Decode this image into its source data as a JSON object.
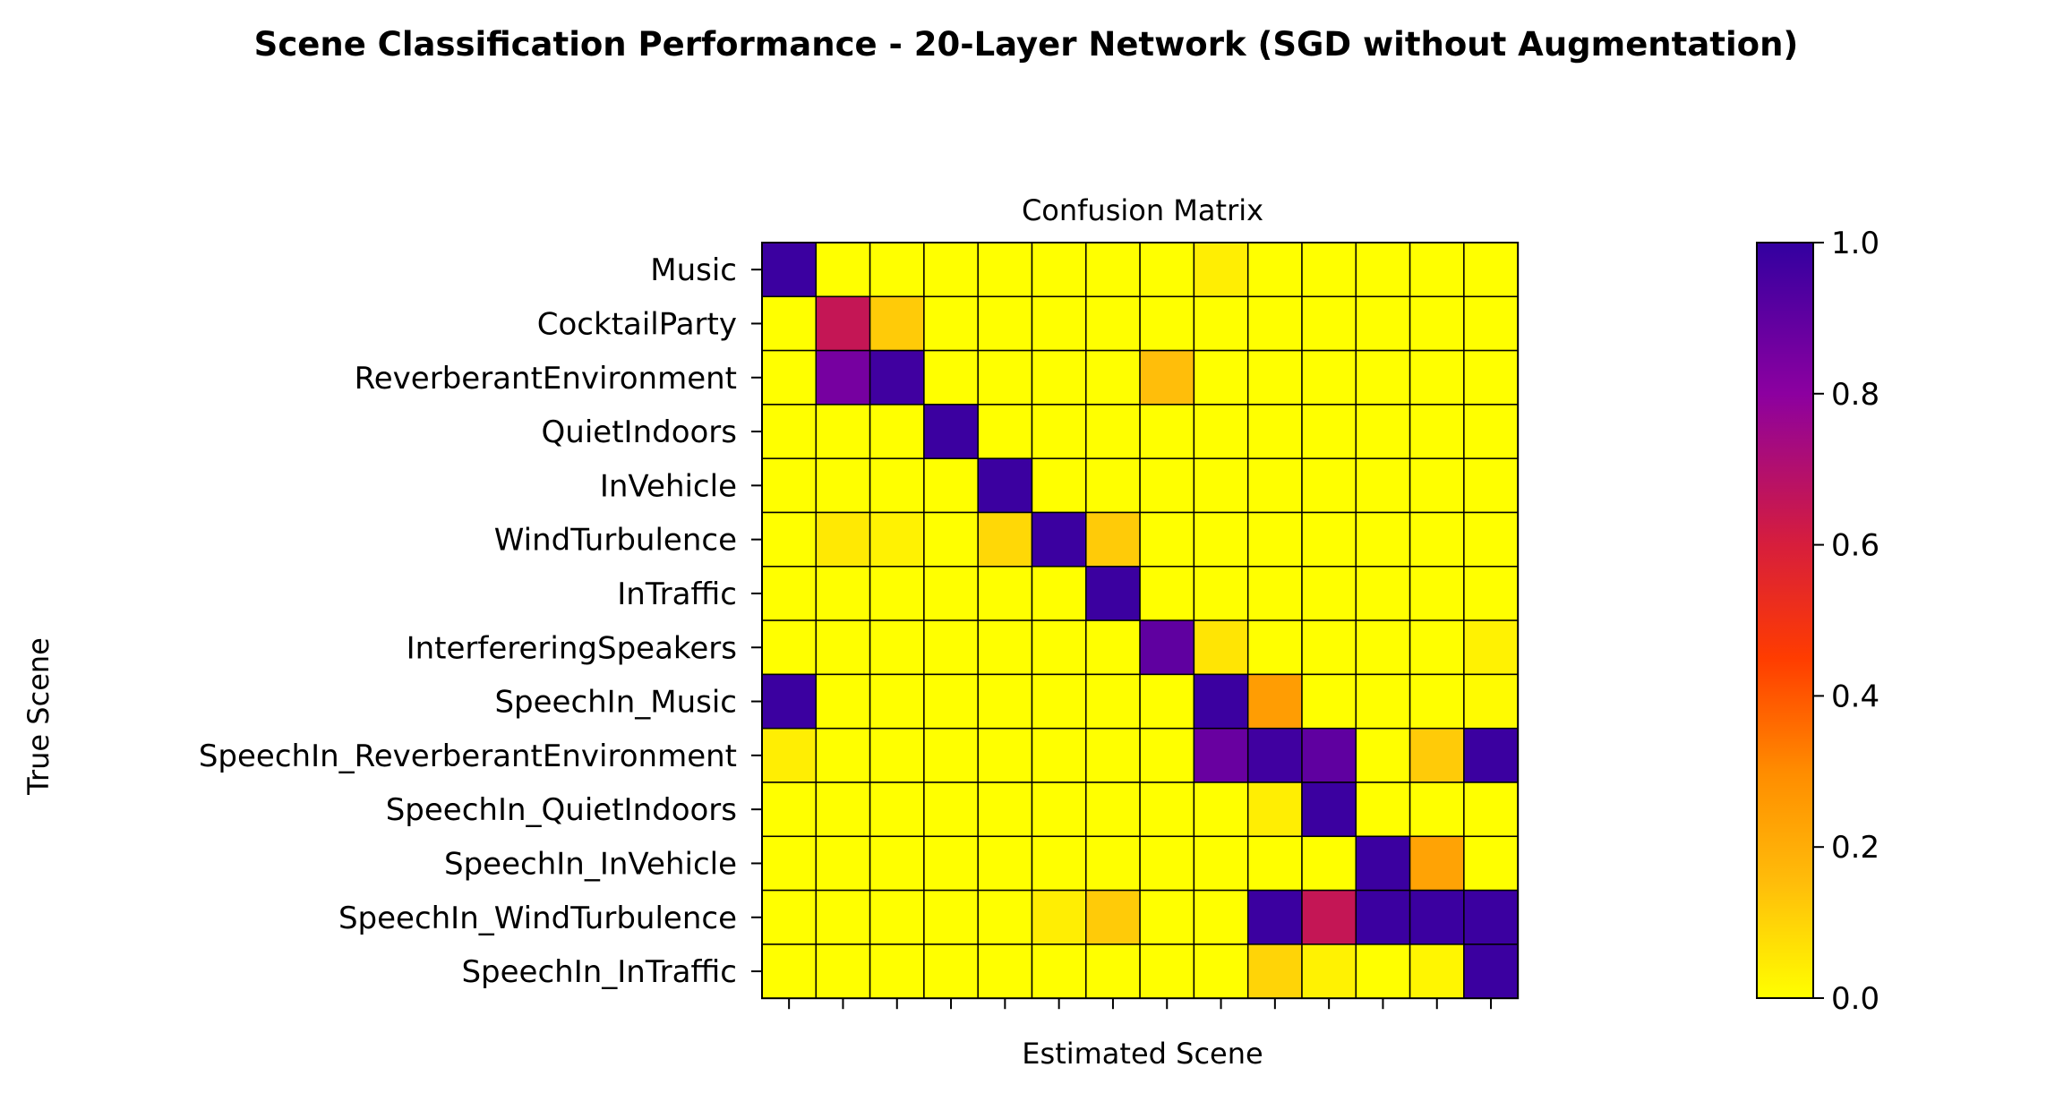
{
  "chart_data": {
    "type": "heatmap",
    "suptitle": "Scene Classification Performance - 20-Layer Network (SGD without Augmentation)",
    "title": "Confusion Matrix",
    "xlabel": "Estimated Scene",
    "ylabel": "True Scene",
    "row_labels": [
      "Music",
      "CocktailParty",
      "ReverberantEnvironment",
      "QuietIndoors",
      "InVehicle",
      "WindTurbulence",
      "InTraffic",
      "InterfereringSpeakers",
      "SpeechIn_Music",
      "SpeechIn_ReverberantEnvironment",
      "SpeechIn_QuietIndoors",
      "SpeechIn_InVehicle",
      "SpeechIn_WindTurbulence",
      "SpeechIn_InTraffic"
    ],
    "x_tick_labels_visible": false,
    "matrix": [
      [
        0.98,
        0.0,
        0.0,
        0.0,
        0.0,
        0.0,
        0.0,
        0.0,
        0.04,
        0.0,
        0.0,
        0.0,
        0.0,
        0.0
      ],
      [
        0.0,
        0.65,
        0.12,
        0.0,
        0.0,
        0.0,
        0.0,
        0.0,
        0.0,
        0.0,
        0.0,
        0.0,
        0.0,
        0.0
      ],
      [
        0.0,
        0.85,
        0.97,
        0.0,
        0.0,
        0.0,
        0.0,
        0.15,
        0.0,
        0.0,
        0.0,
        0.0,
        0.0,
        0.0
      ],
      [
        0.0,
        0.0,
        0.0,
        0.98,
        0.0,
        0.0,
        0.0,
        0.0,
        0.0,
        0.0,
        0.0,
        0.0,
        0.0,
        0.0
      ],
      [
        0.0,
        0.0,
        0.0,
        0.0,
        0.98,
        0.0,
        0.0,
        0.0,
        0.0,
        0.0,
        0.0,
        0.0,
        0.0,
        0.0
      ],
      [
        0.0,
        0.05,
        0.03,
        0.0,
        0.09,
        0.98,
        0.12,
        0.0,
        0.0,
        0.0,
        0.0,
        0.0,
        0.0,
        0.0
      ],
      [
        0.0,
        0.0,
        0.0,
        0.0,
        0.0,
        0.0,
        0.98,
        0.0,
        0.0,
        0.0,
        0.0,
        0.0,
        0.0,
        0.0
      ],
      [
        0.0,
        0.0,
        0.0,
        0.0,
        0.0,
        0.0,
        0.0,
        0.9,
        0.06,
        0.0,
        0.0,
        0.0,
        0.0,
        0.03
      ],
      [
        0.98,
        0.0,
        0.0,
        0.0,
        0.0,
        0.0,
        0.0,
        0.0,
        0.98,
        0.25,
        0.0,
        0.0,
        0.0,
        0.01
      ],
      [
        0.04,
        0.0,
        0.0,
        0.0,
        0.0,
        0.0,
        0.0,
        0.0,
        0.88,
        0.97,
        0.9,
        0.0,
        0.12,
        0.98
      ],
      [
        0.0,
        0.0,
        0.0,
        0.0,
        0.0,
        0.0,
        0.0,
        0.0,
        0.0,
        0.04,
        0.98,
        0.0,
        0.0,
        0.0
      ],
      [
        0.0,
        0.0,
        0.0,
        0.0,
        0.0,
        0.0,
        0.0,
        0.0,
        0.0,
        0.0,
        0.0,
        0.98,
        0.23,
        0.0
      ],
      [
        0.0,
        0.0,
        0.0,
        0.0,
        0.0,
        0.04,
        0.12,
        0.0,
        0.0,
        0.98,
        0.65,
        0.98,
        0.98,
        0.98
      ],
      [
        0.0,
        0.0,
        0.0,
        0.0,
        0.0,
        0.0,
        0.0,
        0.0,
        0.0,
        0.1,
        0.03,
        0.0,
        0.02,
        0.98
      ]
    ],
    "colormap": "plasma_r",
    "colorbar": {
      "range": [
        0.0,
        1.0
      ],
      "ticks": [
        "0.0",
        "0.2",
        "0.4",
        "0.6",
        "0.8",
        "1.0"
      ]
    },
    "grid": true,
    "colors": {
      "cell_edge": "#000000",
      "background": "#ffffff"
    }
  }
}
